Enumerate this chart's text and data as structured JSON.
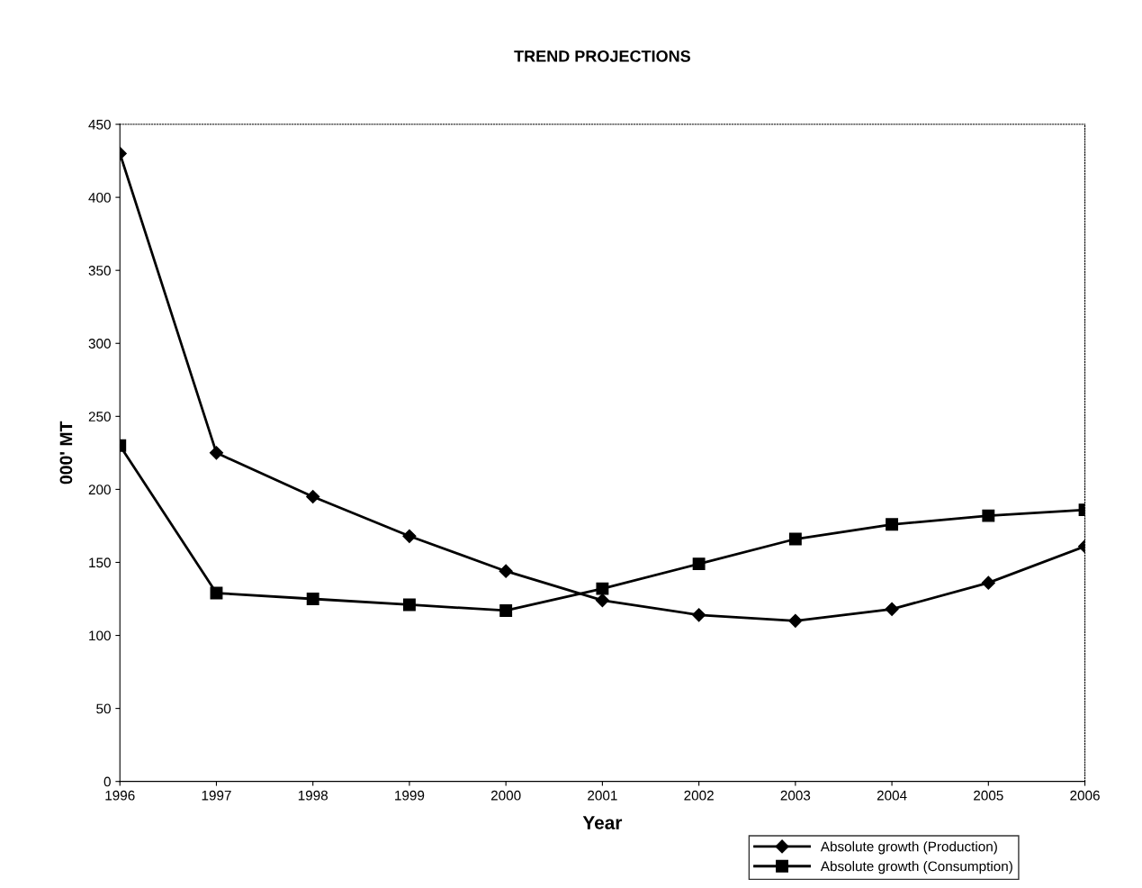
{
  "chart_data": {
    "type": "line",
    "title": "TREND PROJECTIONS",
    "xlabel": "Year",
    "ylabel": "000' MT",
    "x": [
      1996,
      1997,
      1998,
      1999,
      2000,
      2001,
      2002,
      2003,
      2004,
      2005,
      2006
    ],
    "series": [
      {
        "name": "Absolute growth (Production)",
        "color": "#000000",
        "marker": "diamond",
        "values": [
          430,
          225,
          195,
          168,
          144,
          124,
          114,
          110,
          118,
          136,
          161
        ]
      },
      {
        "name": "Absolute growth (Consumption)",
        "color": "#000000",
        "marker": "square",
        "values": [
          230,
          129,
          125,
          121,
          117,
          132,
          149,
          166,
          176,
          182,
          186
        ]
      }
    ],
    "xlim": [
      1996,
      2006
    ],
    "xticks": [
      1996,
      1997,
      1998,
      1999,
      2000,
      2001,
      2002,
      2003,
      2004,
      2005,
      2006
    ],
    "ylim": [
      0,
      450
    ],
    "yticks": [
      0,
      50,
      100,
      150,
      200,
      250,
      300,
      350,
      400,
      450
    ],
    "grid": false,
    "legend": "bottom right",
    "line_style": "solid"
  }
}
